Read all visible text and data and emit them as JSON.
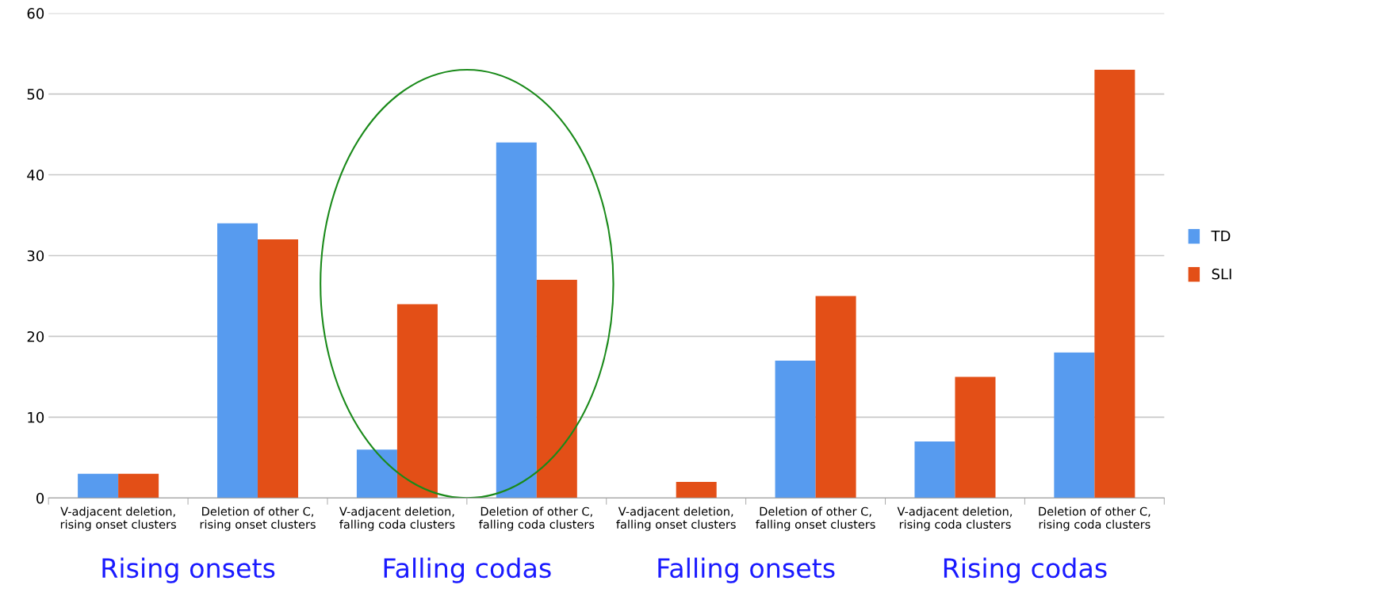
{
  "chart_data": {
    "type": "bar",
    "categories": [
      "V-adjacent deletion,\nrising onset clusters",
      "Deletion of other C,\nrising onset clusters",
      "V-adjacent deletion,\nfalling coda clusters",
      "Deletion of other C,\nfalling coda clusters",
      "V-adjacent deletion,\nfalling onset clusters",
      "Deletion of other C,\nfalling onset clusters",
      "V-adjacent deletion,\nrising coda clusters",
      "Deletion of other C,\nrising coda clusters"
    ],
    "series": [
      {
        "name": "TD",
        "color": "#579bef",
        "values": [
          3,
          34,
          6,
          44,
          null,
          17,
          7,
          18
        ]
      },
      {
        "name": "SLI",
        "color": "#e34f17",
        "values": [
          3,
          32,
          24,
          27,
          2,
          25,
          15,
          53
        ]
      }
    ],
    "ylim": [
      0,
      60
    ],
    "yticks": [
      0,
      10,
      20,
      30,
      40,
      50,
      60
    ],
    "grid": "y",
    "legend": "right",
    "annotations": [
      "Rising onsets",
      "Falling codas",
      "Falling onsets",
      "Rising codas"
    ]
  }
}
